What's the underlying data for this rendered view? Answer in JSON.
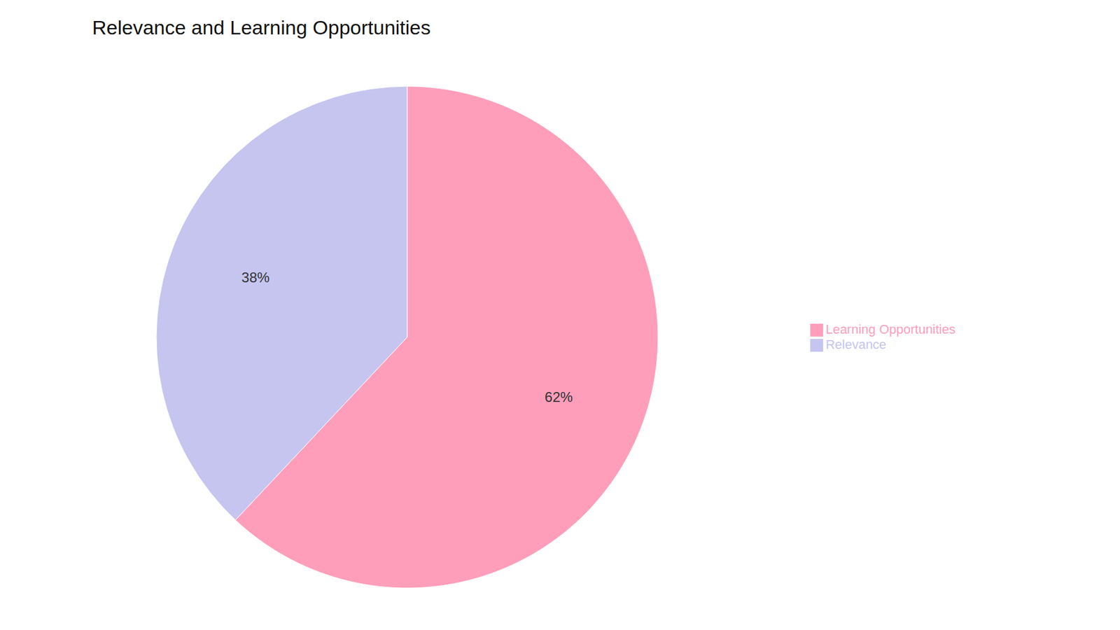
{
  "chart_data": {
    "type": "pie",
    "title": "Relevance and Learning Opportunities",
    "categories": [
      "Learning Opportunities",
      "Relevance"
    ],
    "values": [
      62,
      38
    ],
    "value_labels": [
      "62%",
      "38%"
    ],
    "colors": [
      "#FF9EBB",
      "#C5C5F0"
    ],
    "data_labels": true,
    "legend": "right"
  }
}
